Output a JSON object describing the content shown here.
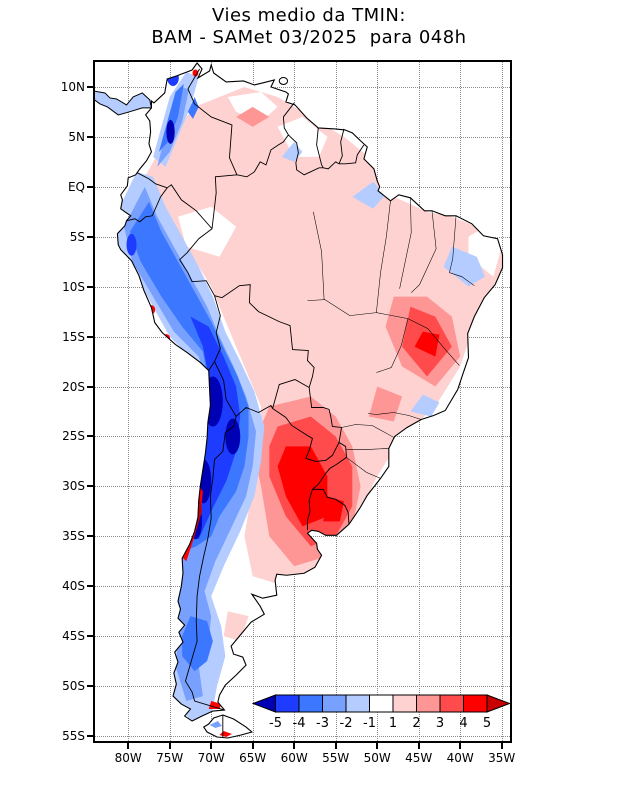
{
  "title": {
    "line1": "Vies medio da TMIN:",
    "line2": "BAM - SAMet 03/2025  para 048h"
  },
  "axes": {
    "x": {
      "min_lon": -84,
      "max_lon": -34,
      "ticks": [
        {
          "label": "80W",
          "lon": -80
        },
        {
          "label": "75W",
          "lon": -75
        },
        {
          "label": "70W",
          "lon": -70
        },
        {
          "label": "65W",
          "lon": -65
        },
        {
          "label": "60W",
          "lon": -60
        },
        {
          "label": "55W",
          "lon": -55
        },
        {
          "label": "50W",
          "lon": -50
        },
        {
          "label": "45W",
          "lon": -45
        },
        {
          "label": "40W",
          "lon": -40
        },
        {
          "label": "35W",
          "lon": -35
        }
      ]
    },
    "y": {
      "max_lat": 12.5,
      "min_lat": -55.5,
      "ticks": [
        {
          "label": "10N",
          "lat": 10
        },
        {
          "label": "5N",
          "lat": 5
        },
        {
          "label": "EQ",
          "lat": 0
        },
        {
          "label": "5S",
          "lat": -5
        },
        {
          "label": "10S",
          "lat": -10
        },
        {
          "label": "15S",
          "lat": -15
        },
        {
          "label": "20S",
          "lat": -20
        },
        {
          "label": "25S",
          "lat": -25
        },
        {
          "label": "30S",
          "lat": -30
        },
        {
          "label": "35S",
          "lat": -35
        },
        {
          "label": "40S",
          "lat": -40
        },
        {
          "label": "45S",
          "lat": -45
        },
        {
          "label": "50S",
          "lat": -50
        },
        {
          "label": "55S",
          "lat": -55
        }
      ]
    }
  },
  "colorbar": {
    "tick_labels": [
      "-5",
      "-4",
      "-3",
      "-2",
      "-1",
      "1",
      "2",
      "3",
      "4",
      "5"
    ],
    "colors": [
      "#0000b4",
      "#1e3cff",
      "#3c78ff",
      "#78a0ff",
      "#b4ccff",
      "#ffffff",
      "#ffd2d2",
      "#ff9696",
      "#ff4b4b",
      "#ff0000",
      "#c80000"
    ],
    "label_color": "#000000"
  },
  "field_summary": {
    "negative_bias_regions": "Andes cordillera from Colombia through Peru, Bolivia, northern Chile and Patagonia (values -2 to below -5)",
    "positive_bias_regions": "Central Chile coast, Paraguay, Uruguay, northeastern Argentina and southern/central Brazil (values +2 to above +5)",
    "near_neutral_regions": "Amazon basin, Venezuela, Guianas and northeastern Brazil (values -1 to +2)"
  }
}
